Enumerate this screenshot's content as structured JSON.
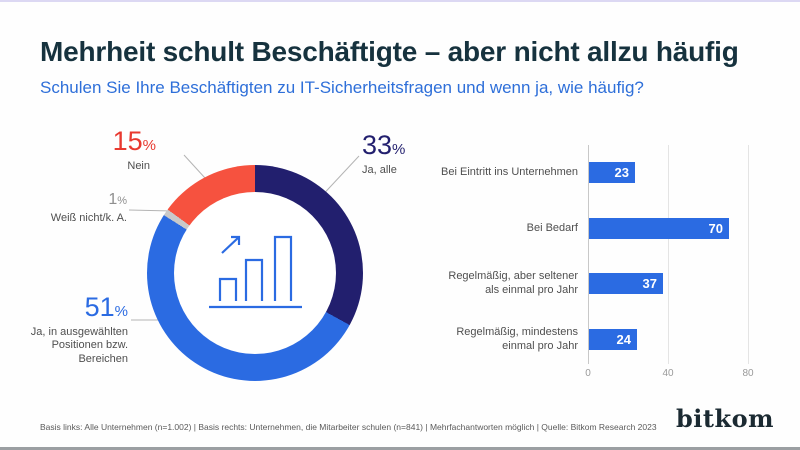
{
  "header": {
    "title": "Mehrheit schult Beschäftigte – aber nicht allzu häufig",
    "subtitle": "Schulen Sie Ihre Beschäftigten zu IT-Sicherheitsfragen und wenn ja, wie häufig?"
  },
  "unit": "%",
  "colors": {
    "navy": "#221f6e",
    "blue": "#2b6be2",
    "red": "#f6523f",
    "gray": "#c9c9c9",
    "title_text": "#16323e",
    "subtitle_text": "#2e6fd9"
  },
  "chart_data": [
    {
      "type": "pie",
      "subtype": "donut",
      "start_angle_deg": 0,
      "center_icon": "growth-bar-chart-icon",
      "segments": [
        {
          "label": "Ja, alle",
          "value": 33,
          "color": "#221f6e"
        },
        {
          "label": "Ja, in ausgewählten Positionen bzw. Bereichen",
          "value": 51,
          "color": "#2b6be2"
        },
        {
          "label": "Weiß nicht/k. A.",
          "value": 1,
          "color": "#c9c9c9"
        },
        {
          "label": "Nein",
          "value": 15,
          "color": "#f6523f"
        }
      ]
    },
    {
      "type": "bar",
      "orientation": "horizontal",
      "categories": [
        "Bei Eintritt ins Unternehmen",
        "Bei Bedarf",
        "Regelmäßig, aber seltener\nals einmal pro Jahr",
        "Regelmäßig, mindestens\neinmal pro Jahr"
      ],
      "values": [
        23,
        70,
        37,
        24
      ],
      "bar_color": "#2b6be2",
      "xlim": [
        0,
        80
      ],
      "ticks": [
        0,
        40,
        80
      ],
      "grid": "vertical"
    }
  ],
  "footer": {
    "note": "Basis links: Alle Unternehmen (n=1.002) | Basis rechts: Unternehmen, die Mitarbeiter schulen (n=841) | Mehrfachantworten möglich | Quelle: Bitkom Research 2023",
    "brand": "bitkom"
  }
}
